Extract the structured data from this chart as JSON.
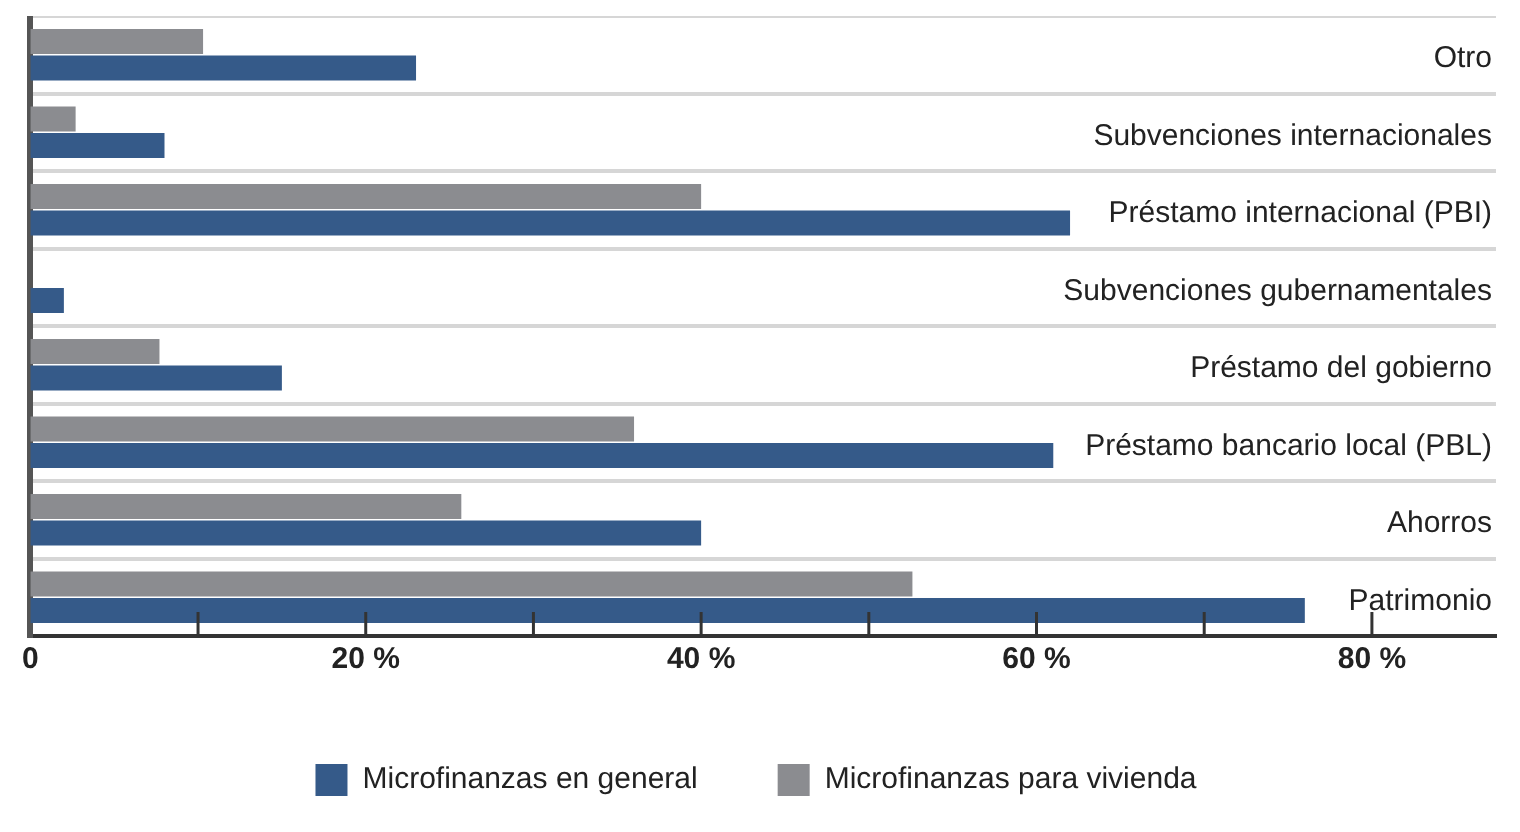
{
  "chart_data": {
    "type": "bar",
    "orientation": "horizontal",
    "categories": [
      "Otro",
      "Subvenciones internacionales",
      "Préstamo internacional (PBI)",
      "Subvenciones gubernamentales",
      "Préstamo del gobierno",
      "Préstamo bancario local (PBL)",
      "Ahorros",
      "Patrimonio"
    ],
    "series": [
      {
        "name": "Microfinanzas en general",
        "color": "#355a89",
        "values": [
          23,
          8,
          62,
          2,
          15,
          61,
          40,
          76
        ]
      },
      {
        "name": "Microfinanzas para vivienda",
        "color": "#8b8c90",
        "values": [
          10.3,
          2.7,
          40,
          null,
          7.7,
          36,
          25.7,
          52.6
        ]
      }
    ],
    "xlim": [
      0,
      87.4
    ],
    "xticks": [
      0,
      {
        "value": 10,
        "label": null
      },
      {
        "value": 20,
        "label": "20 %"
      },
      {
        "value": 30,
        "label": null
      },
      {
        "value": 40,
        "label": "40 %"
      },
      {
        "value": 50,
        "label": null
      },
      {
        "value": 60,
        "label": "60 %"
      },
      {
        "value": 70,
        "label": null
      },
      {
        "value": 80,
        "label": "80 %"
      }
    ],
    "grid": "y",
    "legend": "bottom"
  }
}
